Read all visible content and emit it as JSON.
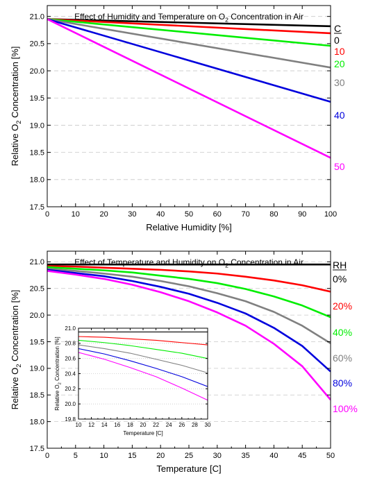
{
  "chart_data": [
    {
      "type": "line",
      "title": "Effect of Humidity and Temperature on O",
      "title_sub": "2",
      "title_tail": " Concentration in Air",
      "xlabel": "Relative Humidity [%]",
      "ylabel_main": "Relative O",
      "ylabel_sub": "2",
      "ylabel_tail": " Concentration [%]",
      "xlim": [
        0,
        100
      ],
      "ylim": [
        17.5,
        21.2
      ],
      "xticks": [
        "0",
        "10",
        "20",
        "30",
        "40",
        "50",
        "60",
        "70",
        "80",
        "90",
        "100"
      ],
      "yticks": [
        "17.5",
        "18.0",
        "18.5",
        "19.0",
        "19.5",
        "20.0",
        "20.5",
        "21.0"
      ],
      "grid": "horizontal dashed",
      "legend_title": "C",
      "legend_placement": "right",
      "x": [
        0,
        100
      ],
      "series": [
        {
          "name": "0",
          "color": "#000000",
          "values": [
            20.95,
            20.82
          ]
        },
        {
          "name": "10",
          "color": "#ff0000",
          "values": [
            20.95,
            20.69
          ]
        },
        {
          "name": "20",
          "color": "#00ee00",
          "values": [
            20.95,
            20.46
          ]
        },
        {
          "name": "30",
          "color": "#808080",
          "values": [
            20.95,
            20.06
          ]
        },
        {
          "name": "40",
          "color": "#0000dd",
          "values": [
            20.95,
            19.43
          ]
        },
        {
          "name": "50",
          "color": "#ff00ff",
          "values": [
            20.95,
            18.4
          ]
        }
      ]
    },
    {
      "type": "line",
      "title": "Effect of Temperature and Humidity on O",
      "title_sub": "2",
      "title_tail": " Concentration in Air",
      "xlabel": "Temperature [C]",
      "ylabel_main": "Relative O",
      "ylabel_sub": "2",
      "ylabel_tail": " Concentration [%]",
      "xlim": [
        0,
        50
      ],
      "ylim": [
        17.5,
        21.2
      ],
      "xticks": [
        "0",
        "5",
        "10",
        "15",
        "20",
        "25",
        "30",
        "35",
        "40",
        "45",
        "50"
      ],
      "yticks": [
        "17.5",
        "18.0",
        "18.5",
        "19.0",
        "19.5",
        "20.0",
        "20.5",
        "21.0"
      ],
      "grid": "horizontal dashed",
      "legend_title": "RH",
      "legend_placement": "right",
      "x": [
        0,
        5,
        10,
        15,
        20,
        25,
        30,
        35,
        40,
        45,
        50
      ],
      "series": [
        {
          "name": "0%",
          "color": "#000000",
          "values": [
            20.95,
            20.95,
            20.95,
            20.95,
            20.95,
            20.95,
            20.95,
            20.95,
            20.95,
            20.95,
            20.95
          ]
        },
        {
          "name": "20%",
          "color": "#ff0000",
          "values": [
            20.92,
            20.91,
            20.89,
            20.87,
            20.85,
            20.82,
            20.78,
            20.72,
            20.65,
            20.56,
            20.44
          ]
        },
        {
          "name": "40%",
          "color": "#00ee00",
          "values": [
            20.9,
            20.87,
            20.84,
            20.8,
            20.74,
            20.68,
            20.6,
            20.49,
            20.35,
            20.18,
            19.96
          ]
        },
        {
          "name": "60%",
          "color": "#808080",
          "values": [
            20.87,
            20.83,
            20.78,
            20.72,
            20.64,
            20.54,
            20.41,
            20.26,
            20.06,
            19.8,
            19.47
          ]
        },
        {
          "name": "80%",
          "color": "#0000dd",
          "values": [
            20.85,
            20.79,
            20.73,
            20.64,
            20.53,
            20.4,
            20.23,
            20.03,
            19.76,
            19.42,
            18.94
          ]
        },
        {
          "name": "100%",
          "color": "#ff00ff",
          "values": [
            20.83,
            20.76,
            20.68,
            20.57,
            20.43,
            20.26,
            20.05,
            19.8,
            19.46,
            19.04,
            18.41
          ]
        }
      ]
    },
    {
      "type": "line",
      "inset": true,
      "xlabel": "Temperature [C]",
      "ylabel_main": "Relative O",
      "ylabel_sub": "2",
      "ylabel_tail": " Concentration [%]",
      "xlim": [
        10,
        30
      ],
      "ylim": [
        19.8,
        21.0
      ],
      "xticks": [
        "10",
        "12",
        "14",
        "16",
        "18",
        "20",
        "22",
        "24",
        "26",
        "28",
        "30"
      ],
      "yticks": [
        "19.8",
        "20.0",
        "20.2",
        "20.4",
        "20.6",
        "20.8",
        "21.0"
      ],
      "grid": "horizontal dotted",
      "x": [
        10,
        14,
        18,
        22,
        26,
        30
      ],
      "series": [
        {
          "color": "#000000",
          "values": [
            20.95,
            20.95,
            20.95,
            20.95,
            20.95,
            20.95
          ]
        },
        {
          "color": "#ff0000",
          "values": [
            20.89,
            20.88,
            20.86,
            20.84,
            20.81,
            20.78
          ]
        },
        {
          "color": "#00ee00",
          "values": [
            20.84,
            20.81,
            20.77,
            20.72,
            20.67,
            20.6
          ]
        },
        {
          "color": "#808080",
          "values": [
            20.78,
            20.73,
            20.67,
            20.59,
            20.51,
            20.41
          ]
        },
        {
          "color": "#0000dd",
          "values": [
            20.73,
            20.66,
            20.57,
            20.47,
            20.36,
            20.23
          ]
        },
        {
          "color": "#ff00ff",
          "values": [
            20.68,
            20.59,
            20.48,
            20.36,
            20.21,
            20.05
          ]
        }
      ]
    }
  ]
}
